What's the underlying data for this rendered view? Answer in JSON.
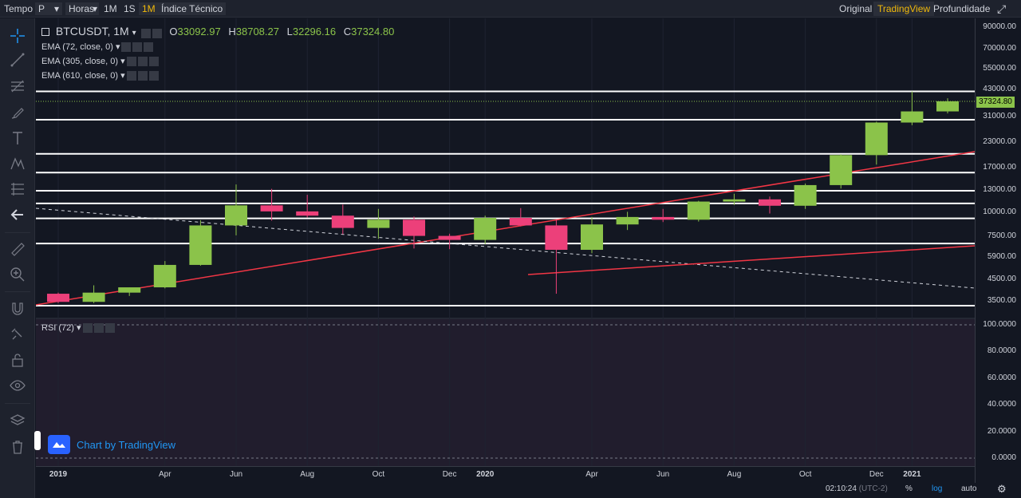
{
  "toolbar": {
    "time_label": "Tempo",
    "chart_type": "P",
    "hours_label": "Horas",
    "interval_1m_min": "1M",
    "interval_1s": "1S",
    "interval_1m_month": "1M",
    "indicator_label": "Índice Técnico",
    "view_original": "Original",
    "view_tradingview": "TradingView",
    "view_depth": "Profundidade"
  },
  "legend": {
    "symbol": "BTCUSDT, 1M",
    "open_label": "O",
    "open": "33092.97",
    "high_label": "H",
    "high": "38708.27",
    "low_label": "L",
    "low": "32296.16",
    "close_label": "C",
    "close": "37324.80",
    "ema1": "EMA (72, close, 0)",
    "ema2": "EMA (305, close, 0)",
    "ema3": "EMA (610, close, 0)",
    "rsi": "RSI (72)"
  },
  "price_axis": [
    "90000.00",
    "70000.00",
    "55000.00",
    "43000.00",
    "31000.00",
    "23000.00",
    "17000.00",
    "13000.00",
    "10000.00",
    "7500.00",
    "5900.00",
    "4500.00",
    "3500.00"
  ],
  "rsi_axis": [
    "100.0000",
    "80.0000",
    "60.0000",
    "40.0000",
    "20.0000",
    "0.0000"
  ],
  "time_axis": [
    "2019",
    "Apr",
    "Jun",
    "Aug",
    "Oct",
    "Dec",
    "2020",
    "Apr",
    "Jun",
    "Aug",
    "Oct",
    "Dec",
    "2021"
  ],
  "last_price": "37324.80",
  "watermark": "Chart by TradingView",
  "bottom": {
    "clock": "02:10:24",
    "tz": "(UTC-2)",
    "percent": "%",
    "log": "log",
    "auto": "auto"
  },
  "colors": {
    "up": "#8bc34a",
    "down": "#ec407a",
    "trend": "#f23645",
    "level": "#ffffff",
    "accent": "#f0b90b"
  },
  "chart_data": {
    "type": "candlestick",
    "scale": "log",
    "candles": [
      {
        "t": "2019-01",
        "o": 3800,
        "h": 3850,
        "l": 3400,
        "c": 3450
      },
      {
        "t": "2019-02",
        "o": 3450,
        "h": 4200,
        "l": 3400,
        "c": 3850
      },
      {
        "t": "2019-03",
        "o": 3850,
        "h": 4100,
        "l": 3700,
        "c": 4100
      },
      {
        "t": "2019-04",
        "o": 4100,
        "h": 5600,
        "l": 4050,
        "c": 5350
      },
      {
        "t": "2019-05",
        "o": 5350,
        "h": 9100,
        "l": 5300,
        "c": 8550
      },
      {
        "t": "2019-06",
        "o": 8550,
        "h": 13900,
        "l": 7600,
        "c": 10850
      },
      {
        "t": "2019-07",
        "o": 10850,
        "h": 13200,
        "l": 9050,
        "c": 10100
      },
      {
        "t": "2019-08",
        "o": 10100,
        "h": 12300,
        "l": 9400,
        "c": 9600
      },
      {
        "t": "2019-09",
        "o": 9600,
        "h": 10950,
        "l": 7700,
        "c": 8300
      },
      {
        "t": "2019-10",
        "o": 8300,
        "h": 10400,
        "l": 7300,
        "c": 9150
      },
      {
        "t": "2019-11",
        "o": 9150,
        "h": 9500,
        "l": 6500,
        "c": 7550
      },
      {
        "t": "2019-12",
        "o": 7550,
        "h": 7750,
        "l": 6450,
        "c": 7200
      },
      {
        "t": "2020-01",
        "o": 7200,
        "h": 9600,
        "l": 6850,
        "c": 9350
      },
      {
        "t": "2020-02",
        "o": 9350,
        "h": 10500,
        "l": 8450,
        "c": 8550
      },
      {
        "t": "2020-03",
        "o": 8550,
        "h": 9200,
        "l": 3800,
        "c": 6400
      },
      {
        "t": "2020-04",
        "o": 6400,
        "h": 9450,
        "l": 6150,
        "c": 8650
      },
      {
        "t": "2020-05",
        "o": 8650,
        "h": 10050,
        "l": 8100,
        "c": 9450
      },
      {
        "t": "2020-06",
        "o": 9450,
        "h": 10400,
        "l": 8900,
        "c": 9150
      },
      {
        "t": "2020-07",
        "o": 9150,
        "h": 11450,
        "l": 8950,
        "c": 11350
      },
      {
        "t": "2020-08",
        "o": 11350,
        "h": 12450,
        "l": 10900,
        "c": 11650
      },
      {
        "t": "2020-09",
        "o": 11650,
        "h": 12050,
        "l": 9850,
        "c": 10800
      },
      {
        "t": "2020-10",
        "o": 10800,
        "h": 14050,
        "l": 10400,
        "c": 13800
      },
      {
        "t": "2020-11",
        "o": 13800,
        "h": 19900,
        "l": 13250,
        "c": 19700
      },
      {
        "t": "2020-12",
        "o": 19700,
        "h": 29300,
        "l": 17600,
        "c": 29000
      },
      {
        "t": "2021-01",
        "o": 29000,
        "h": 41950,
        "l": 28100,
        "c": 33100
      },
      {
        "t": "2021-02",
        "o": 33100,
        "h": 38700,
        "l": 32300,
        "c": 37325
      }
    ],
    "levels": [
      42000,
      30000,
      20000,
      16000,
      12900,
      11100,
      9300,
      6900,
      3300
    ],
    "rsi_range": [
      0,
      100
    ]
  }
}
